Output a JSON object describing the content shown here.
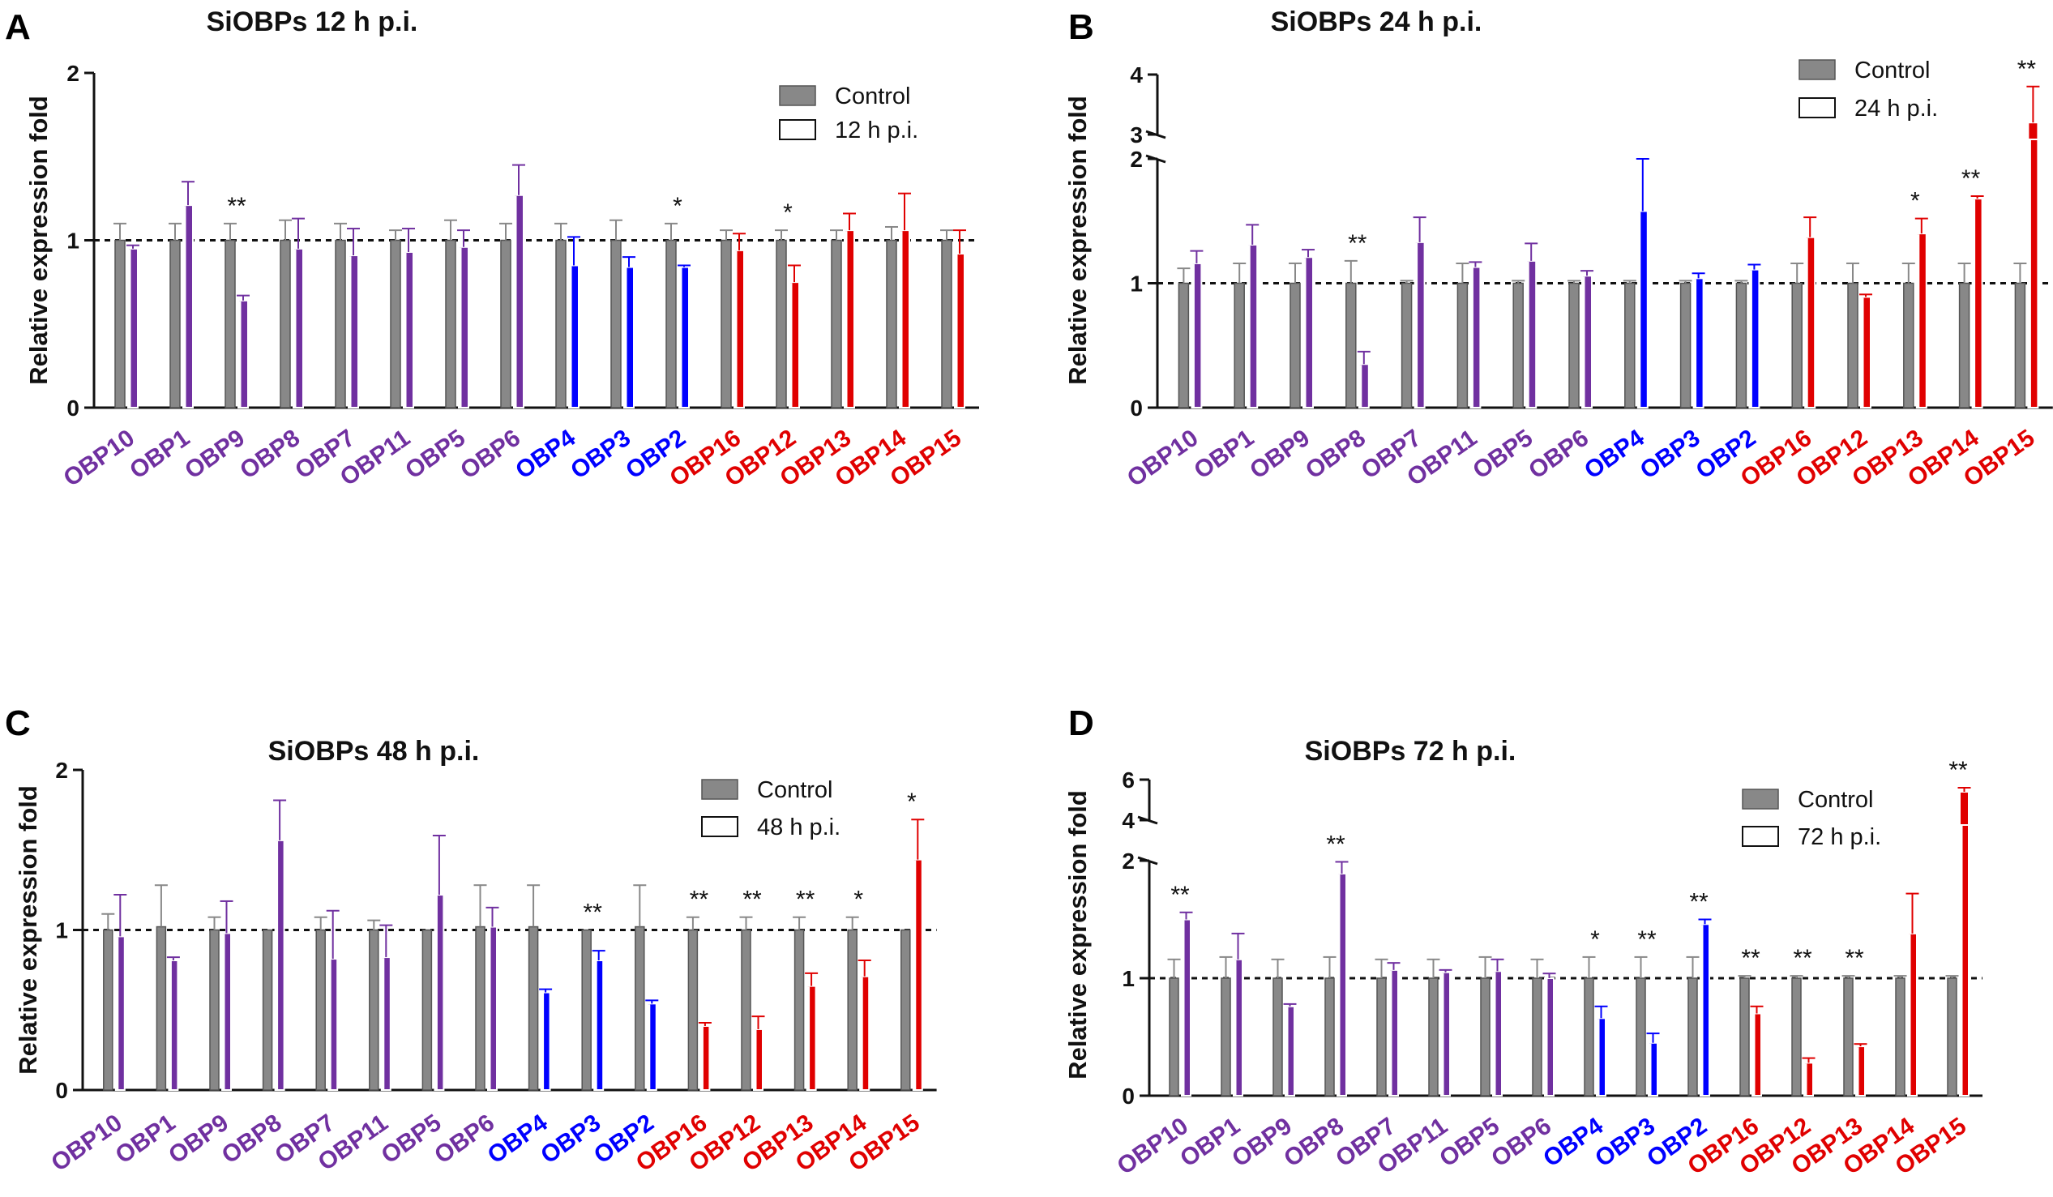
{
  "figure": {
    "group_colors": {
      "purple": "#7030a0",
      "blue": "#0000ff",
      "red": "#e00000"
    },
    "control_color": "#888888"
  },
  "chart_data": [
    {
      "type": "bar",
      "panel": "A",
      "title": "SiOBPs 12 h p.i.",
      "ylabel": "Relative expression fold",
      "ylim": [
        0,
        2
      ],
      "yticks": [
        "0",
        "1",
        "2"
      ],
      "reference_line": 1,
      "legend": [
        "Control",
        "12 h p.i."
      ],
      "categories": [
        "OBP10",
        "OBP1",
        "OBP9",
        "OBP8",
        "OBP7",
        "OBP11",
        "OBP5",
        "OBP6",
        "OBP4",
        "OBP3",
        "OBP2",
        "OBP16",
        "OBP12",
        "OBP13",
        "OBP14",
        "OBP15"
      ],
      "category_groups": [
        "purple",
        "purple",
        "purple",
        "purple",
        "purple",
        "purple",
        "purple",
        "purple",
        "blue",
        "blue",
        "blue",
        "red",
        "red",
        "red",
        "red",
        "red"
      ],
      "series": [
        {
          "name": "Control",
          "values": [
            1,
            1,
            1,
            1,
            1,
            1,
            1,
            1,
            1,
            1,
            1,
            1,
            1,
            1,
            1,
            1
          ],
          "errors": [
            0.1,
            0.1,
            0.1,
            0.12,
            0.1,
            0.06,
            0.12,
            0.1,
            0.1,
            0.12,
            0.1,
            0.06,
            0.06,
            0.06,
            0.08,
            0.06
          ]
        },
        {
          "name": "12 h p.i.",
          "values": [
            0.95,
            1.21,
            0.64,
            0.95,
            0.91,
            0.93,
            0.96,
            1.27,
            0.85,
            0.84,
            0.84,
            0.94,
            0.75,
            1.06,
            1.06,
            0.92
          ],
          "errors": [
            0.02,
            0.14,
            0.03,
            0.18,
            0.16,
            0.14,
            0.1,
            0.18,
            0.17,
            0.06,
            0.01,
            0.1,
            0.1,
            0.1,
            0.22,
            0.14
          ]
        }
      ],
      "significance": [
        "",
        "",
        "**",
        "",
        "",
        "",
        "",
        "",
        "",
        "",
        "*",
        "",
        "*",
        "",
        "",
        ""
      ]
    },
    {
      "type": "bar",
      "panel": "B",
      "title": "SiOBPs 24 h p.i.",
      "ylabel": "Relative expression fold",
      "ylim": [
        0,
        4
      ],
      "axis_break": [
        2,
        3
      ],
      "yticks": [
        "0",
        "1",
        "2",
        "3",
        "4"
      ],
      "reference_line": 1,
      "legend": [
        "Control",
        "24 h p.i."
      ],
      "categories": [
        "OBP10",
        "OBP1",
        "OBP9",
        "OBP8",
        "OBP7",
        "OBP11",
        "OBP5",
        "OBP6",
        "OBP4",
        "OBP3",
        "OBP2",
        "OBP16",
        "OBP12",
        "OBP13",
        "OBP14",
        "OBP15"
      ],
      "category_groups": [
        "purple",
        "purple",
        "purple",
        "purple",
        "purple",
        "purple",
        "purple",
        "purple",
        "blue",
        "blue",
        "blue",
        "red",
        "red",
        "red",
        "red",
        "red"
      ],
      "series": [
        {
          "name": "Control",
          "values": [
            1,
            1,
            1,
            1,
            1,
            1,
            1,
            1,
            1,
            1,
            1,
            1,
            1,
            1,
            1,
            1
          ],
          "errors": [
            0.12,
            0.16,
            0.16,
            0.18,
            0.02,
            0.16,
            0.02,
            0.02,
            0.02,
            0.02,
            0.02,
            0.16,
            0.16,
            0.16,
            0.16,
            0.16
          ]
        },
        {
          "name": "24 h p.i.",
          "values": [
            1.16,
            1.31,
            1.21,
            0.35,
            1.33,
            1.13,
            1.18,
            1.06,
            1.58,
            1.04,
            1.11,
            1.37,
            0.89,
            1.4,
            1.68,
            3.2
          ],
          "errors": [
            0.1,
            0.16,
            0.06,
            0.1,
            0.2,
            0.04,
            0.14,
            0.04,
            0.42,
            0.04,
            0.04,
            0.16,
            0.02,
            0.12,
            0.02,
            0.6
          ]
        }
      ],
      "significance": [
        "",
        "",
        "",
        "**",
        "",
        "",
        "",
        "",
        "",
        "",
        "",
        "",
        "",
        "*",
        "**",
        "**"
      ]
    },
    {
      "type": "bar",
      "panel": "C",
      "title": "SiOBPs 48 h p.i.",
      "ylabel": "Relative expression fold",
      "ylim": [
        0,
        2
      ],
      "yticks": [
        "0",
        "1",
        "2"
      ],
      "reference_line": 1,
      "legend": [
        "Control",
        "48 h p.i."
      ],
      "categories": [
        "OBP10",
        "OBP1",
        "OBP9",
        "OBP8",
        "OBP7",
        "OBP11",
        "OBP5",
        "OBP6",
        "OBP4",
        "OBP3",
        "OBP2",
        "OBP16",
        "OBP12",
        "OBP13",
        "OBP14",
        "OBP15"
      ],
      "category_groups": [
        "purple",
        "purple",
        "purple",
        "purple",
        "purple",
        "purple",
        "purple",
        "purple",
        "blue",
        "blue",
        "blue",
        "red",
        "red",
        "red",
        "red",
        "red"
      ],
      "series": [
        {
          "name": "Control",
          "values": [
            1,
            1.02,
            1,
            1,
            1,
            1,
            1,
            1.02,
            1.02,
            1,
            1.02,
            1,
            1,
            1,
            1,
            1
          ],
          "errors": [
            0.1,
            0.26,
            0.08,
            0,
            0.08,
            0.06,
            0,
            0.26,
            0.26,
            0,
            0.26,
            0.08,
            0.08,
            0.08,
            0.08,
            0
          ]
        },
        {
          "name": "48 h p.i.",
          "values": [
            0.96,
            0.81,
            0.98,
            1.56,
            0.82,
            0.83,
            1.22,
            1.02,
            0.61,
            0.81,
            0.54,
            0.4,
            0.38,
            0.65,
            0.71,
            1.44
          ],
          "errors": [
            0.26,
            0.02,
            0.2,
            0.25,
            0.3,
            0.2,
            0.37,
            0.12,
            0.02,
            0.06,
            0.02,
            0.02,
            0.08,
            0.08,
            0.1,
            0.25
          ]
        }
      ],
      "significance": [
        "",
        "",
        "",
        "",
        "",
        "",
        "",
        "",
        "",
        "**",
        "",
        "**",
        "**",
        "**",
        "*",
        "*"
      ]
    },
    {
      "type": "bar",
      "panel": "D",
      "title": "SiOBPs 72 h p.i.",
      "ylabel": "Relative expression fold",
      "ylim": [
        0,
        6
      ],
      "axis_break": [
        2,
        4
      ],
      "yticks": [
        "0",
        "1",
        "2",
        "4",
        "6"
      ],
      "reference_line": 1,
      "legend": [
        "Control",
        "72 h p.i."
      ],
      "categories": [
        "OBP10",
        "OBP1",
        "OBP9",
        "OBP8",
        "OBP7",
        "OBP11",
        "OBP5",
        "OBP6",
        "OBP4",
        "OBP3",
        "OBP2",
        "OBP16",
        "OBP12",
        "OBP13",
        "OBP14",
        "OBP15"
      ],
      "category_groups": [
        "purple",
        "purple",
        "purple",
        "purple",
        "purple",
        "purple",
        "purple",
        "purple",
        "blue",
        "blue",
        "blue",
        "red",
        "red",
        "red",
        "red",
        "red"
      ],
      "series": [
        {
          "name": "Control",
          "values": [
            1,
            1,
            1,
            1,
            1,
            1,
            1,
            1,
            1,
            1,
            1,
            1,
            1,
            1,
            1,
            1
          ],
          "errors": [
            0.16,
            0.18,
            0.16,
            0.18,
            0.16,
            0.16,
            0.18,
            0.16,
            0.18,
            0.18,
            0.18,
            0.02,
            0.02,
            0.02,
            0.02,
            0.02
          ]
        },
        {
          "name": "72 h p.i.",
          "values": [
            1.5,
            1.16,
            0.76,
            1.89,
            1.07,
            1.05,
            1.06,
            1,
            0.66,
            0.45,
            1.46,
            0.7,
            0.28,
            0.42,
            1.38,
            5.4
          ],
          "errors": [
            0.06,
            0.22,
            0.02,
            0.1,
            0.06,
            0.02,
            0.1,
            0.04,
            0.1,
            0.08,
            0.04,
            0.06,
            0.04,
            0.02,
            0.34,
            0.2
          ]
        }
      ],
      "significance": [
        "**",
        "",
        "",
        "**",
        "",
        "",
        "",
        "",
        "*",
        "**",
        "**",
        "**",
        "**",
        "**",
        "",
        "**"
      ]
    }
  ]
}
